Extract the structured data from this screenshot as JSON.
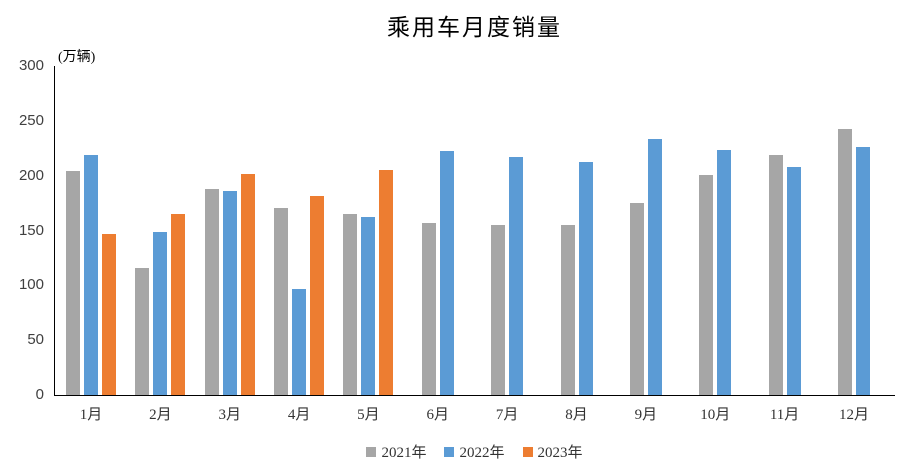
{
  "chart_data": {
    "type": "bar",
    "title": "乘用车月度销量",
    "ylabel": "(万辆)",
    "xlabel": "",
    "categories": [
      "1月",
      "2月",
      "3月",
      "4月",
      "5月",
      "6月",
      "7月",
      "8月",
      "9月",
      "10月",
      "11月",
      "12月"
    ],
    "series": [
      {
        "name": "2021年",
        "color": "#A6A6A6",
        "values": [
          204.5,
          115.6,
          187.4,
          170.8,
          164.6,
          156.9,
          155.1,
          155.2,
          175.1,
          200.7,
          219.2,
          242.2
        ]
      },
      {
        "name": "2022年",
        "color": "#5B9BD5",
        "values": [
          218.6,
          148.7,
          186.4,
          96.5,
          162.3,
          222.2,
          217.4,
          212.5,
          233.2,
          223.1,
          207.5,
          226.3
        ]
      },
      {
        "name": "2023年",
        "color": "#ED7D31",
        "values": [
          146.9,
          165.3,
          201.7,
          181.1,
          205.2,
          null,
          null,
          null,
          null,
          null,
          null,
          null
        ]
      }
    ],
    "ylim": [
      0,
      300
    ],
    "yticks": [
      0,
      50,
      100,
      150,
      200,
      250,
      300
    ],
    "grid": false,
    "legend_position": "bottom",
    "axis_color": "#000000"
  }
}
